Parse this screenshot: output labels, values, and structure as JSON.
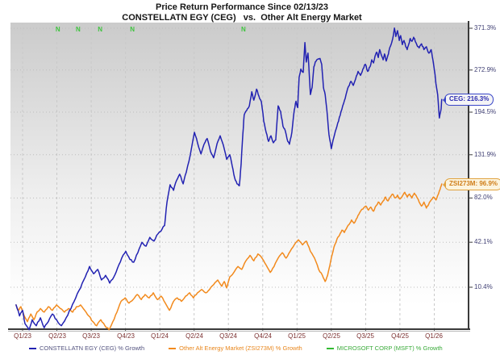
{
  "title": "Price Return Performance Since 02/13/23",
  "subtitle": "CONSTELLATN EGY (CEG)   vs.  Other Alt Energy Market",
  "badges": {
    "ceg": "CEG: 216.3%",
    "zsi": "ZSI273M: 96.9%"
  },
  "legend": [
    {
      "label": "CONSTELLATN EGY (CEG) % Growth",
      "text_color": "#53537f",
      "line_color": "#2222b2"
    },
    {
      "label": "Other Alt Energy Market (ZSI273M) % Growth",
      "text_color": "#e8861c",
      "line_color": "#f28a1d"
    },
    {
      "label": "MICROSOFT CORP (MSFT) % Growth",
      "text_color": "#3aab3a",
      "line_color": "#33bb33"
    }
  ],
  "chart_data": {
    "type": "line",
    "scale": "log",
    "title": "Price Return Performance Since 02/13/23",
    "x_ticks": [
      "Q1/23",
      "Q2/23",
      "Q3/23",
      "Q4/23",
      "Q1/24",
      "Q2/24",
      "Q3/24",
      "Q4/24",
      "Q1/25",
      "Q2/25",
      "Q3/25",
      "Q4/25",
      "Q1/26"
    ],
    "y_ticks": [
      "371.3%",
      "272.9%",
      "194.5%",
      "131.9%",
      "82.0%",
      "42.1%",
      "10.4%"
    ],
    "y_unit": "% growth",
    "grid": true,
    "legend_position": "bottom",
    "event_markers": {
      "symbol": "N",
      "color": "#3fc43f",
      "t_positions": [
        1.03,
        1.62,
        2.26,
        3.2,
        6.44
      ]
    },
    "end_values": {
      "CEG": 216.3,
      "ZSI273M": 96.9
    },
    "series": [
      {
        "name": "CONSTELLATN EGY (CEG)",
        "color": "#2222b2",
        "jitter": 2.2,
        "seed": 7,
        "points": [
          [
            -0.19,
            0
          ],
          [
            -0.09,
            -6
          ],
          [
            0,
            -3
          ],
          [
            0.07,
            -10
          ],
          [
            0.19,
            -13
          ],
          [
            0.28,
            -8
          ],
          [
            0.4,
            -11
          ],
          [
            0.52,
            -7
          ],
          [
            0.63,
            -12
          ],
          [
            0.75,
            -9
          ],
          [
            0.87,
            -5
          ],
          [
            0.99,
            -8
          ],
          [
            1.13,
            -11
          ],
          [
            1.27,
            -7
          ],
          [
            1.41,
            -2
          ],
          [
            1.55,
            4
          ],
          [
            1.69,
            10
          ],
          [
            1.83,
            17
          ],
          [
            1.95,
            24
          ],
          [
            2.07,
            19
          ],
          [
            2.19,
            22
          ],
          [
            2.3,
            15
          ],
          [
            2.42,
            18
          ],
          [
            2.54,
            13
          ],
          [
            2.66,
            17
          ],
          [
            2.77,
            23
          ],
          [
            2.89,
            30
          ],
          [
            3.01,
            35
          ],
          [
            3.13,
            29
          ],
          [
            3.24,
            27
          ],
          [
            3.36,
            34
          ],
          [
            3.48,
            42
          ],
          [
            3.6,
            39
          ],
          [
            3.71,
            46
          ],
          [
            3.83,
            43
          ],
          [
            3.95,
            49
          ],
          [
            4.07,
            53
          ],
          [
            4.14,
            56
          ],
          [
            4.21,
            78
          ],
          [
            4.3,
            96
          ],
          [
            4.4,
            90
          ],
          [
            4.49,
            101
          ],
          [
            4.58,
            108
          ],
          [
            4.68,
            97
          ],
          [
            4.77,
            110
          ],
          [
            4.89,
            132
          ],
          [
            5.01,
            163
          ],
          [
            5.1,
            148
          ],
          [
            5.2,
            133
          ],
          [
            5.29,
            146
          ],
          [
            5.38,
            154
          ],
          [
            5.48,
            136
          ],
          [
            5.57,
            128
          ],
          [
            5.67,
            147
          ],
          [
            5.76,
            158
          ],
          [
            5.85,
            145
          ],
          [
            5.95,
            126
          ],
          [
            6.04,
            132
          ],
          [
            6.11,
            118
          ],
          [
            6.18,
            104
          ],
          [
            6.25,
            97
          ],
          [
            6.32,
            95
          ],
          [
            6.37,
            120
          ],
          [
            6.42,
            160
          ],
          [
            6.46,
            190
          ],
          [
            6.53,
            197
          ],
          [
            6.61,
            205
          ],
          [
            6.68,
            230
          ],
          [
            6.74,
            215
          ],
          [
            6.82,
            235
          ],
          [
            6.89,
            222
          ],
          [
            6.96,
            212
          ],
          [
            7.03,
            180
          ],
          [
            7.1,
            163
          ],
          [
            7.17,
            150
          ],
          [
            7.24,
            158
          ],
          [
            7.31,
            148
          ],
          [
            7.38,
            152
          ],
          [
            7.45,
            205
          ],
          [
            7.52,
            196
          ],
          [
            7.59,
            172
          ],
          [
            7.66,
            165
          ],
          [
            7.73,
            150
          ],
          [
            7.78,
            146
          ],
          [
            7.85,
            163
          ],
          [
            7.92,
            198
          ],
          [
            7.97,
            213
          ],
          [
            8.02,
            202
          ],
          [
            8.06,
            258
          ],
          [
            8.11,
            275
          ],
          [
            8.18,
            268
          ],
          [
            8.23,
            335
          ],
          [
            8.27,
            290
          ],
          [
            8.32,
            310
          ],
          [
            8.39,
            225
          ],
          [
            8.44,
            238
          ],
          [
            8.49,
            280
          ],
          [
            8.53,
            290
          ],
          [
            8.6,
            296
          ],
          [
            8.67,
            298
          ],
          [
            8.72,
            285
          ],
          [
            8.77,
            238
          ],
          [
            8.82,
            225
          ],
          [
            8.89,
            185
          ],
          [
            8.93,
            160
          ],
          [
            9.0,
            140
          ],
          [
            9.07,
            155
          ],
          [
            9.14,
            168
          ],
          [
            9.21,
            180
          ],
          [
            9.28,
            195
          ],
          [
            9.36,
            210
          ],
          [
            9.43,
            225
          ],
          [
            9.5,
            240
          ],
          [
            9.57,
            250
          ],
          [
            9.64,
            242
          ],
          [
            9.71,
            255
          ],
          [
            9.78,
            270
          ],
          [
            9.85,
            262
          ],
          [
            9.92,
            275
          ],
          [
            9.99,
            285
          ],
          [
            10.06,
            270
          ],
          [
            10.13,
            280
          ],
          [
            10.18,
            295
          ],
          [
            10.23,
            288
          ],
          [
            10.27,
            302
          ],
          [
            10.32,
            312
          ],
          [
            10.37,
            300
          ],
          [
            10.41,
            318
          ],
          [
            10.46,
            305
          ],
          [
            10.51,
            295
          ],
          [
            10.55,
            308
          ],
          [
            10.6,
            292
          ],
          [
            10.65,
            305
          ],
          [
            10.69,
            318
          ],
          [
            10.74,
            330
          ],
          [
            10.79,
            345
          ],
          [
            10.84,
            372
          ],
          [
            10.88,
            350
          ],
          [
            10.93,
            365
          ],
          [
            10.98,
            340
          ],
          [
            11.02,
            352
          ],
          [
            11.07,
            330
          ],
          [
            11.12,
            340
          ],
          [
            11.16,
            328
          ],
          [
            11.21,
            318
          ],
          [
            11.26,
            332
          ],
          [
            11.3,
            345
          ],
          [
            11.35,
            338
          ],
          [
            11.4,
            348
          ],
          [
            11.44,
            340
          ],
          [
            11.49,
            330
          ],
          [
            11.56,
            322
          ],
          [
            11.63,
            332
          ],
          [
            11.7,
            318
          ],
          [
            11.77,
            325
          ],
          [
            11.84,
            310
          ],
          [
            11.91,
            318
          ],
          [
            11.96,
            295
          ],
          [
            12.01,
            270
          ],
          [
            12.05,
            245
          ],
          [
            12.1,
            225
          ],
          [
            12.15,
            185
          ],
          [
            12.2,
            200
          ],
          [
            12.22,
            216.3
          ]
        ]
      },
      {
        "name": "Other Alt Energy Market (ZSI273M)",
        "color": "#f28a1d",
        "jitter": 1.6,
        "seed": 31,
        "points": [
          [
            -0.19,
            0
          ],
          [
            -0.12,
            -3
          ],
          [
            -0.05,
            -1
          ],
          [
            0.05,
            -6
          ],
          [
            0.14,
            -9
          ],
          [
            0.24,
            -5
          ],
          [
            0.33,
            -8
          ],
          [
            0.42,
            -4
          ],
          [
            0.52,
            -2
          ],
          [
            0.63,
            -4
          ],
          [
            0.75,
            -1
          ],
          [
            0.87,
            -3
          ],
          [
            0.99,
            0
          ],
          [
            1.1,
            -2
          ],
          [
            1.22,
            -4
          ],
          [
            1.34,
            -2
          ],
          [
            1.46,
            -4
          ],
          [
            1.57,
            -1
          ],
          [
            1.69,
            0
          ],
          [
            1.81,
            -3
          ],
          [
            1.93,
            -6
          ],
          [
            2.05,
            -9
          ],
          [
            2.16,
            -11
          ],
          [
            2.28,
            -8
          ],
          [
            2.4,
            -11
          ],
          [
            2.52,
            -13
          ],
          [
            2.63,
            -9
          ],
          [
            2.75,
            -4
          ],
          [
            2.87,
            2
          ],
          [
            2.99,
            4
          ],
          [
            3.1,
            1
          ],
          [
            3.22,
            3
          ],
          [
            3.34,
            6
          ],
          [
            3.46,
            3
          ],
          [
            3.57,
            6
          ],
          [
            3.69,
            4
          ],
          [
            3.81,
            7
          ],
          [
            3.93,
            3
          ],
          [
            4.04,
            5
          ],
          [
            4.16,
            1
          ],
          [
            4.28,
            -3
          ],
          [
            4.4,
            2
          ],
          [
            4.51,
            4
          ],
          [
            4.63,
            2
          ],
          [
            4.75,
            5
          ],
          [
            4.87,
            7
          ],
          [
            4.98,
            4
          ],
          [
            5.1,
            7
          ],
          [
            5.22,
            9
          ],
          [
            5.34,
            7
          ],
          [
            5.45,
            9
          ],
          [
            5.57,
            12
          ],
          [
            5.69,
            15
          ],
          [
            5.81,
            11
          ],
          [
            5.88,
            14
          ],
          [
            5.95,
            10
          ],
          [
            6.04,
            17
          ],
          [
            6.16,
            20
          ],
          [
            6.28,
            24
          ],
          [
            6.39,
            22
          ],
          [
            6.51,
            28
          ],
          [
            6.63,
            32
          ],
          [
            6.74,
            28
          ],
          [
            6.86,
            33
          ],
          [
            6.98,
            30
          ],
          [
            7.1,
            25
          ],
          [
            7.22,
            20
          ],
          [
            7.33,
            24
          ],
          [
            7.45,
            30
          ],
          [
            7.57,
            34
          ],
          [
            7.68,
            30
          ],
          [
            7.8,
            35
          ],
          [
            7.92,
            40
          ],
          [
            8.04,
            44
          ],
          [
            8.16,
            40
          ],
          [
            8.27,
            43
          ],
          [
            8.39,
            35
          ],
          [
            8.51,
            30
          ],
          [
            8.63,
            22
          ],
          [
            8.74,
            18
          ],
          [
            8.82,
            14
          ],
          [
            8.89,
            18
          ],
          [
            8.96,
            25
          ],
          [
            9.03,
            33
          ],
          [
            9.1,
            40
          ],
          [
            9.17,
            45
          ],
          [
            9.24,
            48
          ],
          [
            9.31,
            52
          ],
          [
            9.38,
            50
          ],
          [
            9.45,
            54
          ],
          [
            9.52,
            57
          ],
          [
            9.59,
            61
          ],
          [
            9.66,
            58
          ],
          [
            9.73,
            62
          ],
          [
            9.8,
            66
          ],
          [
            9.87,
            70
          ],
          [
            9.94,
            72
          ],
          [
            10.01,
            74
          ],
          [
            10.08,
            70
          ],
          [
            10.15,
            73
          ],
          [
            10.23,
            69
          ],
          [
            10.3,
            74
          ],
          [
            10.37,
            78
          ],
          [
            10.44,
            75
          ],
          [
            10.51,
            79
          ],
          [
            10.58,
            83
          ],
          [
            10.65,
            79
          ],
          [
            10.72,
            83
          ],
          [
            10.79,
            86
          ],
          [
            10.86,
            82
          ],
          [
            10.93,
            85
          ],
          [
            11.0,
            81
          ],
          [
            11.07,
            84
          ],
          [
            11.14,
            88
          ],
          [
            11.21,
            83
          ],
          [
            11.28,
            86
          ],
          [
            11.35,
            82
          ],
          [
            11.42,
            87
          ],
          [
            11.49,
            83
          ],
          [
            11.56,
            78
          ],
          [
            11.63,
            74
          ],
          [
            11.7,
            78
          ],
          [
            11.77,
            72
          ],
          [
            11.84,
            76
          ],
          [
            11.91,
            80
          ],
          [
            11.98,
            83
          ],
          [
            12.05,
            80
          ],
          [
            12.12,
            86
          ],
          [
            12.17,
            91
          ],
          [
            12.22,
            96.9
          ]
        ]
      },
      {
        "name": "MICROSOFT CORP (MSFT)",
        "color": "#33bb33",
        "jitter": 0,
        "seed": 1,
        "points": []
      }
    ]
  }
}
